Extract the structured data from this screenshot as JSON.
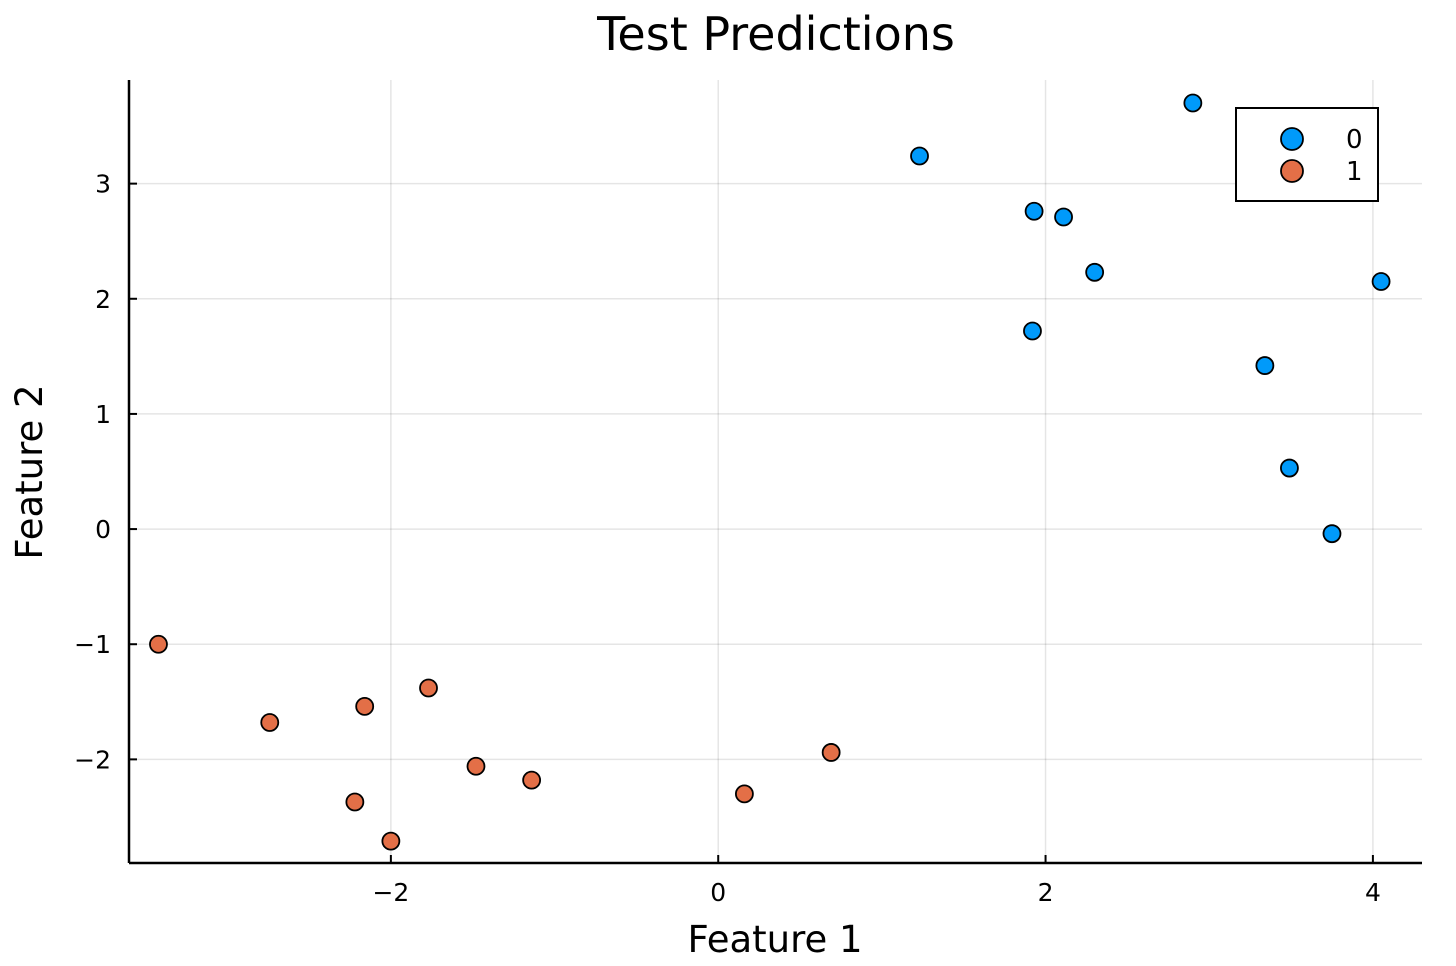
{
  "chart_data": {
    "type": "scatter",
    "title": "Test Predictions",
    "xlabel": "Feature 1",
    "ylabel": "Feature 2",
    "xlim": [
      -3.6,
      4.3
    ],
    "ylim": [
      -2.9,
      3.9
    ],
    "xticks": [
      -2,
      0,
      2,
      4
    ],
    "yticks": [
      -2,
      -1,
      0,
      1,
      2,
      3
    ],
    "xtick_labels": [
      "−2",
      "0",
      "2",
      "4"
    ],
    "ytick_labels": [
      "−2",
      "−1",
      "0",
      "1",
      "2",
      "3"
    ],
    "grid": true,
    "legend_position": "top-right",
    "series": [
      {
        "name": "0",
        "color": "#009AFA",
        "points": [
          {
            "x": 1.23,
            "y": 3.24
          },
          {
            "x": 1.93,
            "y": 2.76
          },
          {
            "x": 2.11,
            "y": 2.71
          },
          {
            "x": 2.3,
            "y": 2.23
          },
          {
            "x": 1.92,
            "y": 1.72
          },
          {
            "x": 2.9,
            "y": 3.7
          },
          {
            "x": 3.34,
            "y": 1.42
          },
          {
            "x": 3.49,
            "y": 0.53
          },
          {
            "x": 3.75,
            "y": -0.04
          },
          {
            "x": 4.05,
            "y": 2.15
          }
        ]
      },
      {
        "name": "1",
        "color": "#E36F47",
        "points": [
          {
            "x": -3.42,
            "y": -1.0
          },
          {
            "x": -2.74,
            "y": -1.68
          },
          {
            "x": -2.16,
            "y": -1.54
          },
          {
            "x": -1.77,
            "y": -1.38
          },
          {
            "x": -2.22,
            "y": -2.37
          },
          {
            "x": -2.0,
            "y": -2.71
          },
          {
            "x": -1.48,
            "y": -2.06
          },
          {
            "x": -1.14,
            "y": -2.18
          },
          {
            "x": 0.16,
            "y": -2.3
          },
          {
            "x": 0.69,
            "y": -1.94
          }
        ]
      }
    ]
  }
}
